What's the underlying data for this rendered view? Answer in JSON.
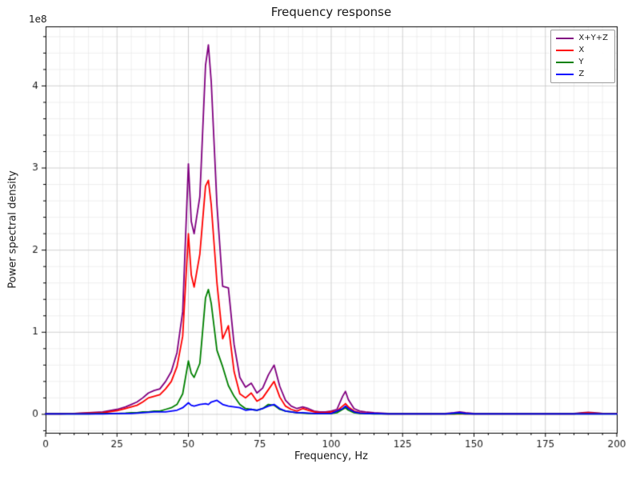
{
  "figure": {
    "title": "Frequency response",
    "xlabel": "Frequency, Hz",
    "ylabel": "Power spectral density",
    "offset_text": "1e8"
  },
  "chart_data": {
    "type": "line",
    "title": "Frequency response",
    "xlabel": "Frequency, Hz",
    "ylabel": "Power spectral density",
    "y_offset_factor": "1e8",
    "xlim": [
      0,
      200
    ],
    "ylim_1e8": [
      -0.225,
      4.725
    ],
    "xticks": [
      0,
      25,
      50,
      75,
      100,
      125,
      150,
      175,
      200
    ],
    "yticks_1e8": [
      0,
      1,
      2,
      3,
      4
    ],
    "minor_x_step": 5,
    "minor_y_step_1e8": 0.2,
    "grid": "both",
    "legend_position": "upper right",
    "x_hz": [
      0,
      5,
      10,
      15,
      20,
      25,
      28,
      30,
      32,
      34,
      36,
      38,
      40,
      42,
      44,
      46,
      48,
      50,
      51,
      52,
      54,
      56,
      57,
      58,
      60,
      62,
      64,
      66,
      68,
      70,
      72,
      74,
      76,
      78,
      80,
      82,
      84,
      86,
      88,
      90,
      92,
      94,
      96,
      98,
      100,
      102,
      104,
      105,
      106,
      108,
      110,
      112,
      115,
      120,
      125,
      130,
      135,
      140,
      143,
      145,
      147,
      150,
      155,
      160,
      165,
      170,
      175,
      180,
      185,
      188,
      190,
      192,
      195,
      200
    ],
    "series": [
      {
        "name": "X+Y+Z",
        "color": "#800080",
        "values_1e8": [
          0.01,
          0.01,
          0.01,
          0.02,
          0.03,
          0.06,
          0.09,
          0.12,
          0.15,
          0.2,
          0.26,
          0.29,
          0.31,
          0.4,
          0.52,
          0.75,
          1.25,
          3.05,
          2.35,
          2.2,
          2.65,
          4.25,
          4.5,
          4.05,
          2.55,
          1.56,
          1.54,
          0.85,
          0.45,
          0.33,
          0.38,
          0.26,
          0.32,
          0.48,
          0.6,
          0.34,
          0.17,
          0.1,
          0.07,
          0.09,
          0.07,
          0.04,
          0.03,
          0.03,
          0.04,
          0.06,
          0.22,
          0.28,
          0.18,
          0.07,
          0.04,
          0.03,
          0.02,
          0.01,
          0.01,
          0.01,
          0.01,
          0.01,
          0.02,
          0.03,
          0.02,
          0.01,
          0.01,
          0.01,
          0.01,
          0.01,
          0.01,
          0.01,
          0.01,
          0.02,
          0.025,
          0.02,
          0.01,
          0.01
        ]
      },
      {
        "name": "X",
        "color": "#ff0000",
        "values_1e8": [
          0.005,
          0.005,
          0.01,
          0.015,
          0.02,
          0.045,
          0.07,
          0.09,
          0.11,
          0.15,
          0.2,
          0.22,
          0.24,
          0.31,
          0.4,
          0.58,
          0.95,
          2.2,
          1.7,
          1.55,
          1.95,
          2.78,
          2.85,
          2.55,
          1.6,
          0.92,
          1.08,
          0.52,
          0.25,
          0.2,
          0.26,
          0.16,
          0.2,
          0.3,
          0.4,
          0.21,
          0.1,
          0.06,
          0.04,
          0.07,
          0.05,
          0.03,
          0.02,
          0.02,
          0.03,
          0.04,
          0.1,
          0.13,
          0.09,
          0.04,
          0.02,
          0.015,
          0.01,
          0.005,
          0.005,
          0.005,
          0.005,
          0.005,
          0.005,
          0.005,
          0.005,
          0.005,
          0.005,
          0.005,
          0.005,
          0.005,
          0.005,
          0.005,
          0.005,
          0.015,
          0.02,
          0.015,
          0.01,
          0.01
        ]
      },
      {
        "name": "Y",
        "color": "#008000",
        "values_1e8": [
          0.005,
          0.005,
          0.005,
          0.005,
          0.01,
          0.01,
          0.015,
          0.02,
          0.02,
          0.03,
          0.03,
          0.04,
          0.04,
          0.06,
          0.08,
          0.12,
          0.25,
          0.65,
          0.5,
          0.45,
          0.62,
          1.42,
          1.52,
          1.35,
          0.78,
          0.58,
          0.35,
          0.22,
          0.12,
          0.07,
          0.06,
          0.05,
          0.07,
          0.12,
          0.11,
          0.06,
          0.04,
          0.03,
          0.02,
          0.015,
          0.01,
          0.01,
          0.01,
          0.01,
          0.01,
          0.02,
          0.06,
          0.08,
          0.05,
          0.02,
          0.01,
          0.01,
          0.005,
          0.005,
          0.005,
          0.005,
          0.005,
          0.005,
          0.005,
          0.01,
          0.005,
          0.005,
          0.005,
          0.005,
          0.005,
          0.005,
          0.005,
          0.005,
          0.005,
          0.005,
          0.005,
          0.005,
          0.005,
          0.005
        ]
      },
      {
        "name": "Z",
        "color": "#0000ff",
        "values_1e8": [
          0.005,
          0.005,
          0.005,
          0.005,
          0.005,
          0.01,
          0.01,
          0.01,
          0.015,
          0.02,
          0.025,
          0.03,
          0.03,
          0.03,
          0.04,
          0.05,
          0.08,
          0.14,
          0.11,
          0.1,
          0.12,
          0.13,
          0.12,
          0.15,
          0.17,
          0.12,
          0.1,
          0.09,
          0.08,
          0.05,
          0.06,
          0.05,
          0.07,
          0.1,
          0.12,
          0.07,
          0.04,
          0.03,
          0.02,
          0.02,
          0.015,
          0.01,
          0.01,
          0.01,
          0.01,
          0.04,
          0.07,
          0.1,
          0.07,
          0.03,
          0.015,
          0.01,
          0.01,
          0.005,
          0.005,
          0.005,
          0.005,
          0.005,
          0.015,
          0.02,
          0.01,
          0.005,
          0.005,
          0.005,
          0.005,
          0.005,
          0.005,
          0.005,
          0.005,
          0.005,
          0.005,
          0.005,
          0.005,
          0.005
        ]
      }
    ]
  }
}
